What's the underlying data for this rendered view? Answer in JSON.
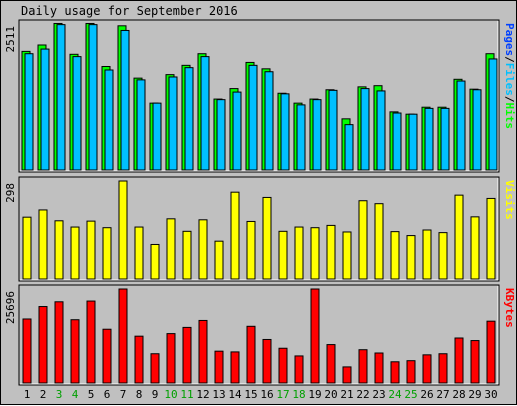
{
  "chart_data": {
    "type": "bar",
    "title": "Daily usage for September 2016",
    "categories": [
      "1",
      "2",
      "3",
      "4",
      "5",
      "6",
      "7",
      "8",
      "9",
      "10",
      "11",
      "12",
      "13",
      "14",
      "15",
      "16",
      "17",
      "18",
      "19",
      "20",
      "21",
      "22",
      "23",
      "24",
      "25",
      "26",
      "27",
      "28",
      "29",
      "30"
    ],
    "weekend_days": [
      "3",
      "4",
      "10",
      "11",
      "17",
      "18",
      "24",
      "25"
    ],
    "colors": {
      "hits": "#00ff00",
      "files": "#00c0ff",
      "pages": "#0040ff",
      "visits": "#ffff00",
      "kbytes": "#ff0000",
      "weekend_label": "#00a000",
      "weekday_label": "#000000"
    },
    "panels": [
      {
        "id": "usage",
        "max_label": "2511",
        "right_label": [
          {
            "text": "Pages",
            "color": "#0040ff"
          },
          {
            "text": "/",
            "color": "#000000"
          },
          {
            "text": "Files",
            "color": "#00c0ff"
          },
          {
            "text": "/",
            "color": "#000000"
          },
          {
            "text": "Hits",
            "color": "#00ff00"
          }
        ],
        "ymax": 2511,
        "series": [
          {
            "name": "Hits",
            "color": "#00ff00",
            "values": [
              2040,
              2150,
              2520,
              1990,
              2520,
              1780,
              2480,
              1580,
              1150,
              1640,
              1800,
              2000,
              1220,
              1400,
              1850,
              1740,
              1320,
              1150,
              1220,
              1380,
              880,
              1430,
              1450,
              1000,
              960,
              1080,
              1080,
              1560,
              1390,
              2000
            ]
          },
          {
            "name": "Files",
            "color": "#00c0ff",
            "values": [
              2000,
              2080,
              2500,
              1950,
              2500,
              1720,
              2400,
              1550,
              1150,
              1600,
              1760,
              1950,
              1210,
              1340,
              1800,
              1690,
              1310,
              1120,
              1210,
              1370,
              780,
              1400,
              1360,
              980,
              960,
              1060,
              1060,
              1530,
              1380,
              1910
            ]
          }
        ]
      },
      {
        "id": "visits",
        "max_label": "298",
        "right_label": [
          {
            "text": "Visits",
            "color": "#ffff00"
          }
        ],
        "ymax": 298,
        "series": [
          {
            "name": "Visits",
            "color": "#ffff00",
            "values": [
              188,
              210,
              177,
              158,
              176,
              156,
              298,
              158,
              105,
              183,
              145,
              180,
              115,
              264,
              175,
              248,
              145,
              158,
              156,
              163,
              143,
              238,
              229,
              144,
              132,
              149,
              141,
              255,
              189,
              245
            ]
          }
        ]
      },
      {
        "id": "kbytes",
        "max_label": "25696",
        "right_label": [
          {
            "text": "KBytes",
            "color": "#ff0000"
          }
        ],
        "ymax": 25696,
        "series": [
          {
            "name": "KBytes",
            "color": "#ff0000",
            "values": [
              17500,
              20900,
              22200,
              17300,
              22400,
              14700,
              25696,
              12800,
              8000,
              13500,
              15200,
              17100,
              8700,
              8500,
              15500,
              11900,
              9500,
              7400,
              25696,
              10500,
              4400,
              9100,
              8200,
              5800,
              6100,
              7700,
              8000,
              12300,
              11600,
              16900
            ]
          }
        ]
      }
    ]
  }
}
